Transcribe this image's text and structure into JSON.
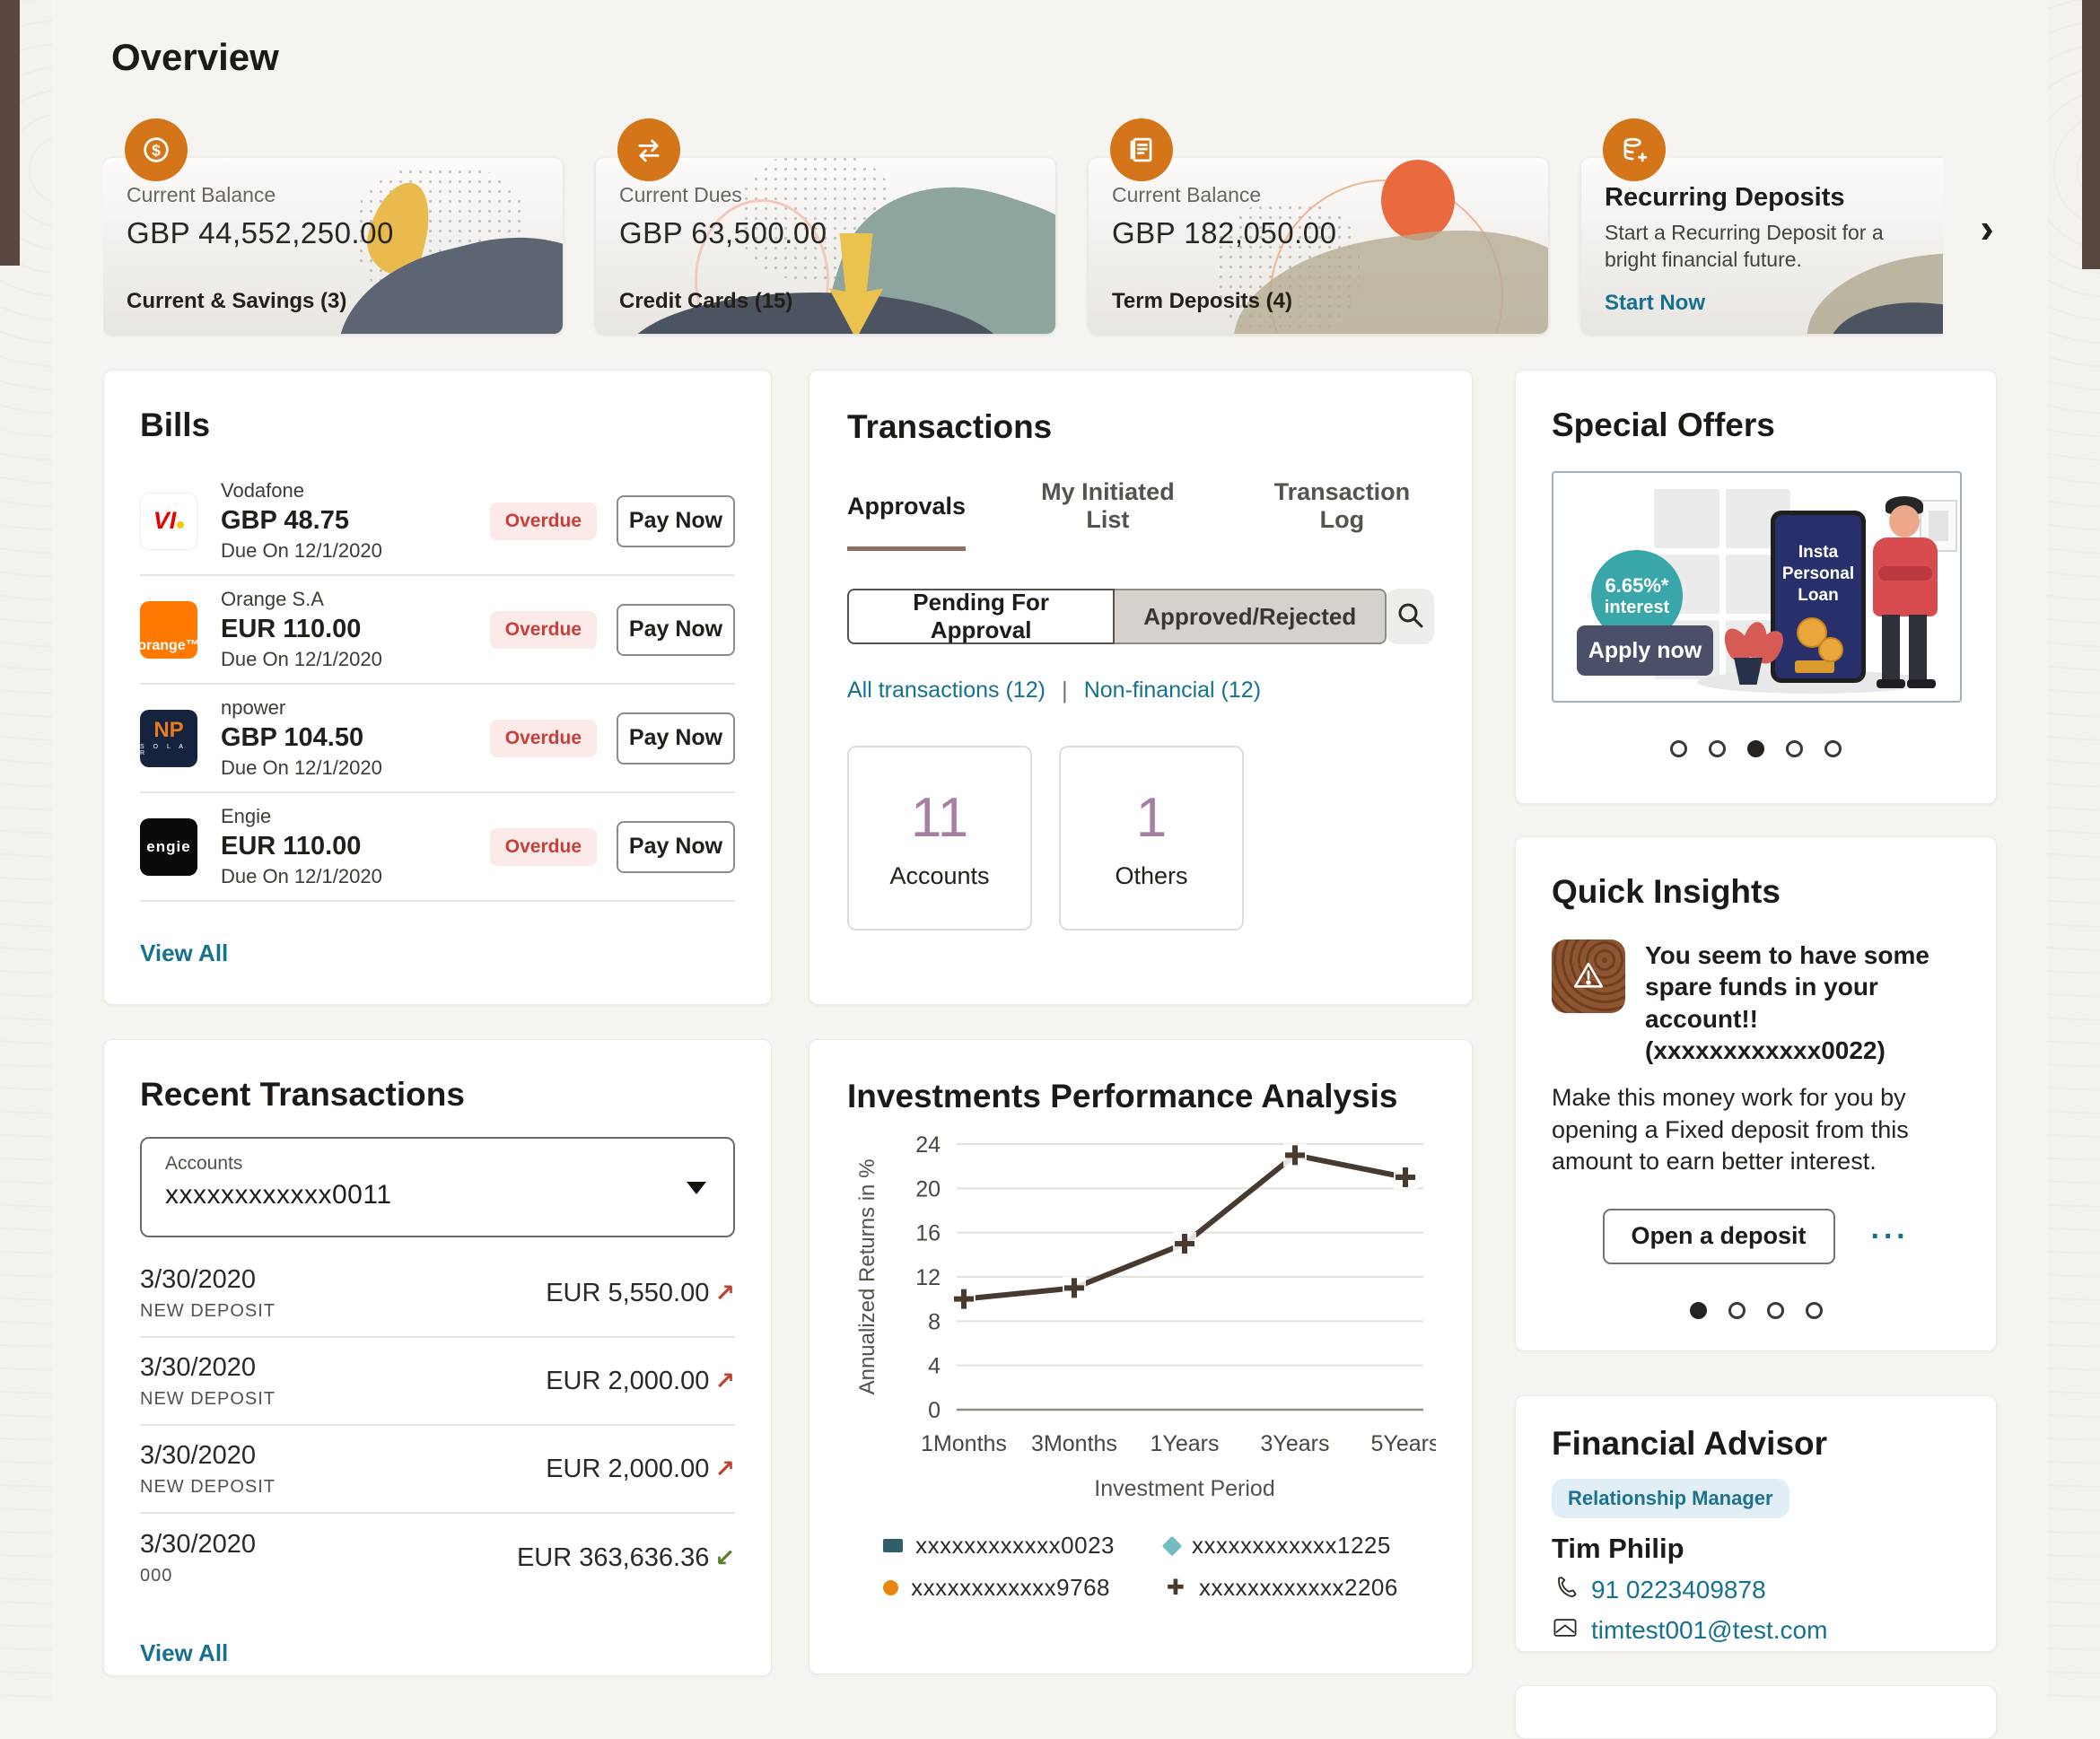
{
  "page": {
    "title": "Overview"
  },
  "colors": {
    "accent_orange": "#d4751a",
    "link_teal": "#15718f",
    "overdue_red": "#c5413a",
    "stat_purple": "#a77fa5",
    "tab_underline_brown": "#8a7164",
    "edge_brown": "#594641"
  },
  "carousel": {
    "next": "›"
  },
  "summary_cards": [
    {
      "icon": "dollar-coin-icon",
      "label": "Current Balance",
      "value": "GBP 44,552,250.00",
      "footer": "Current & Savings (3)"
    },
    {
      "icon": "exchange-icon",
      "label": "Current Dues",
      "value": "GBP 63,500.00",
      "footer": "Credit Cards (15)"
    },
    {
      "icon": "passbook-icon",
      "label": "Current Balance",
      "value": "GBP 182,050.00",
      "footer": "Term Deposits (4)"
    },
    {
      "icon": "coins-icon",
      "title": "Recurring Deposits",
      "description": "Start a Recurring Deposit for a bright financial future.",
      "cta": "Start Now"
    }
  ],
  "bills": {
    "title": "Bills",
    "view_all": "View All",
    "items": [
      {
        "provider": "Vodafone",
        "logo_text": "VI",
        "amount": "GBP 48.75",
        "due": "Due On 12/1/2020",
        "status": "Overdue",
        "action": "Pay Now"
      },
      {
        "provider": "Orange S.A",
        "logo_text": "orange™",
        "amount": "EUR 110.00",
        "due": "Due On 12/1/2020",
        "status": "Overdue",
        "action": "Pay Now"
      },
      {
        "provider": "npower",
        "logo_text": "NP",
        "logo_sub": "S O L A R",
        "amount": "GBP 104.50",
        "due": "Due On 12/1/2020",
        "status": "Overdue",
        "action": "Pay Now"
      },
      {
        "provider": "Engie",
        "logo_text": "engie",
        "amount": "EUR 110.00",
        "due": "Due On 12/1/2020",
        "status": "Overdue",
        "action": "Pay Now"
      }
    ]
  },
  "transactions": {
    "title": "Transactions",
    "tabs": [
      "Approvals",
      "My Initiated List",
      "Transaction Log"
    ],
    "toggle": [
      "Pending For Approval",
      "Approved/Rejected"
    ],
    "filters": [
      "All transactions (12)",
      "Non-financial (12)"
    ],
    "filter_divider": "|",
    "stats": [
      {
        "count": "11",
        "label": "Accounts"
      },
      {
        "count": "1",
        "label": "Others"
      }
    ]
  },
  "special_offers": {
    "title": "Special Offers",
    "offer": {
      "rate": "6.65%*",
      "rate_caption": "interest",
      "apply_label": "Apply now",
      "screen_text": "Insta Personal Loan"
    },
    "dots": {
      "count": 5,
      "active": 2
    }
  },
  "quick_insights": {
    "title": "Quick Insights",
    "headline": "You seem to have some spare funds in your account!! (xxxxxxxxxxxx0022)",
    "body": "Make this money work for you by opening a Fixed deposit from this amount to earn better interest.",
    "action": "Open a deposit",
    "more_label": "···",
    "dots": {
      "count": 4,
      "active": 0
    }
  },
  "financial_advisor": {
    "title": "Financial Advisor",
    "badge": "Relationship Manager",
    "name": "Tim Philip",
    "phone": "91 0223409878",
    "email": "timtest001@test.com"
  },
  "recent_transactions": {
    "title": "Recent Transactions",
    "account_select": {
      "label": "Accounts",
      "value": "xxxxxxxxxxxx0011"
    },
    "view_all": "View All",
    "items": [
      {
        "date": "3/30/2020",
        "type": "NEW DEPOSIT",
        "amount": "EUR 5,550.00",
        "direction": "out",
        "arrow": "↗"
      },
      {
        "date": "3/30/2020",
        "type": "NEW DEPOSIT",
        "amount": "EUR 2,000.00",
        "direction": "out",
        "arrow": "↗"
      },
      {
        "date": "3/30/2020",
        "type": "NEW DEPOSIT",
        "amount": "EUR 2,000.00",
        "direction": "out",
        "arrow": "↗"
      },
      {
        "date": "3/30/2020",
        "type": "000",
        "amount": "EUR 363,636.36",
        "direction": "in",
        "arrow": "↙"
      }
    ]
  },
  "chart_data": {
    "type": "line",
    "title": "Investments Performance Analysis",
    "x": [
      "1Months",
      "3Months",
      "1Years",
      "3Years",
      "5Years"
    ],
    "series": [
      {
        "name": "xxxxxxxxxxxx2206",
        "values": [
          10,
          11,
          15,
          23,
          21
        ],
        "color": "#473b31",
        "marker": "plus"
      }
    ],
    "legend": [
      {
        "label": "xxxxxxxxxxxx0023",
        "marker": "square",
        "color": "#2f5f68"
      },
      {
        "label": "xxxxxxxxxxxx1225",
        "marker": "diamond",
        "color": "#74bcc4"
      },
      {
        "label": "xxxxxxxxxxxx9768",
        "marker": "circle",
        "color": "#e8860f"
      },
      {
        "label": "xxxxxxxxxxxx2206",
        "marker": "plus",
        "color": "#473b31"
      }
    ],
    "xlabel": "Investment Period",
    "ylabel": "Annualized Returns in %",
    "ylim": [
      0,
      24
    ],
    "yticks": [
      0,
      4,
      8,
      12,
      16,
      20,
      24
    ],
    "grid": true,
    "legend_position": "bottom"
  }
}
